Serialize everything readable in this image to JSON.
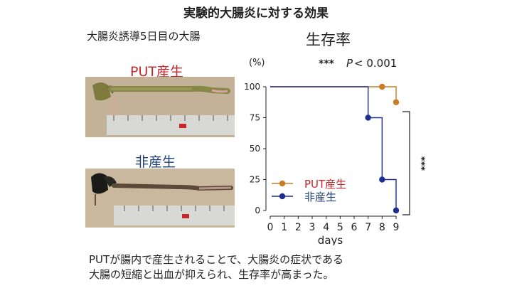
{
  "title": "実験的大腸炎に対する効果",
  "left_heading": "大腸炎誘導5日目の大腸",
  "photo_top_label": "PUT産生",
  "photo_bottom_label": "非産生",
  "chart_title": "生存率",
  "caption_lines": [
    "PUTが腸内で産生されることで、大腸炎の症状である",
    "大腸の短縮と出血が抑えられ、生存率が高まった。"
  ],
  "colors": {
    "put": "#c97b27",
    "non": "#1f2f8f",
    "red_text": "#c8262b",
    "blue_text": "#1f3f77"
  },
  "chart_data": {
    "type": "line",
    "title": "生存率",
    "ylabel": "(%)",
    "xlabel": "days",
    "x_ticks": [
      0,
      1,
      2,
      3,
      4,
      5,
      6,
      7,
      8,
      9
    ],
    "y_ticks": [
      0,
      25,
      50,
      75,
      100
    ],
    "xlim": [
      0,
      9
    ],
    "ylim": [
      0,
      100
    ],
    "step": true,
    "significance": "***",
    "p_text": "P",
    "p_value": "< 0.001",
    "series": [
      {
        "name": "PUT産生",
        "color": "#c97b27",
        "steps": [
          [
            0,
            100
          ],
          [
            8,
            100
          ],
          [
            9,
            87.5
          ]
        ],
        "markers": [
          [
            8,
            100
          ],
          [
            9,
            87.5
          ]
        ]
      },
      {
        "name": "非産生",
        "color": "#1f2f8f",
        "steps": [
          [
            0,
            100
          ],
          [
            7,
            75
          ],
          [
            8,
            25
          ],
          [
            9,
            0
          ]
        ],
        "markers": [
          [
            7,
            75
          ],
          [
            8,
            25
          ],
          [
            9,
            0
          ]
        ]
      }
    ]
  }
}
